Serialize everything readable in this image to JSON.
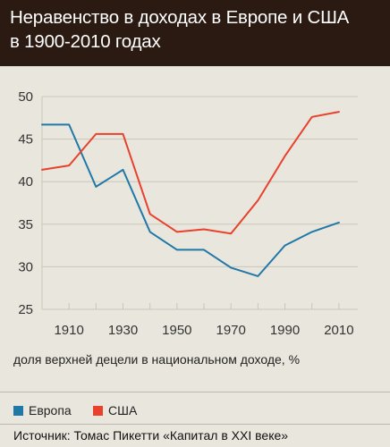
{
  "header": {
    "title_line1": "Неравенство в доходах в Европе и США",
    "title_line2": "в 1900-2010 годах"
  },
  "colors": {
    "header_bg": "#2b1a12",
    "europe": "#1f78a8",
    "usa": "#e8412c",
    "grid": "#c9c5bb"
  },
  "chart_data": {
    "type": "line",
    "title": "",
    "xlabel": "доля верхней децели в национальном доходе, %",
    "ylabel": "",
    "xlim": [
      1900,
      2017
    ],
    "ylim": [
      25,
      50
    ],
    "x_ticks": [
      "1910",
      "1930",
      "1950",
      "1970",
      "1990",
      "2010"
    ],
    "y_ticks": [
      "25",
      "30",
      "35",
      "40",
      "45",
      "50"
    ],
    "grid": true,
    "legend_position": "bottom",
    "x": [
      1900,
      1910,
      1920,
      1930,
      1940,
      1950,
      1960,
      1970,
      1980,
      1990,
      2000,
      2010
    ],
    "series": [
      {
        "name": "Европа",
        "color": "#1f78a8",
        "values": [
          46.7,
          46.7,
          39.4,
          41.4,
          34.1,
          32.0,
          32.0,
          29.9,
          28.9,
          32.5,
          34.1,
          35.2
        ]
      },
      {
        "name": "США",
        "color": "#e8412c",
        "values": [
          41.4,
          41.9,
          45.6,
          45.6,
          36.2,
          34.1,
          34.4,
          33.9,
          37.8,
          43.0,
          47.6,
          48.2
        ]
      }
    ]
  },
  "source": "Источник: Томас Пикетти «Капитал в XXI веке»"
}
